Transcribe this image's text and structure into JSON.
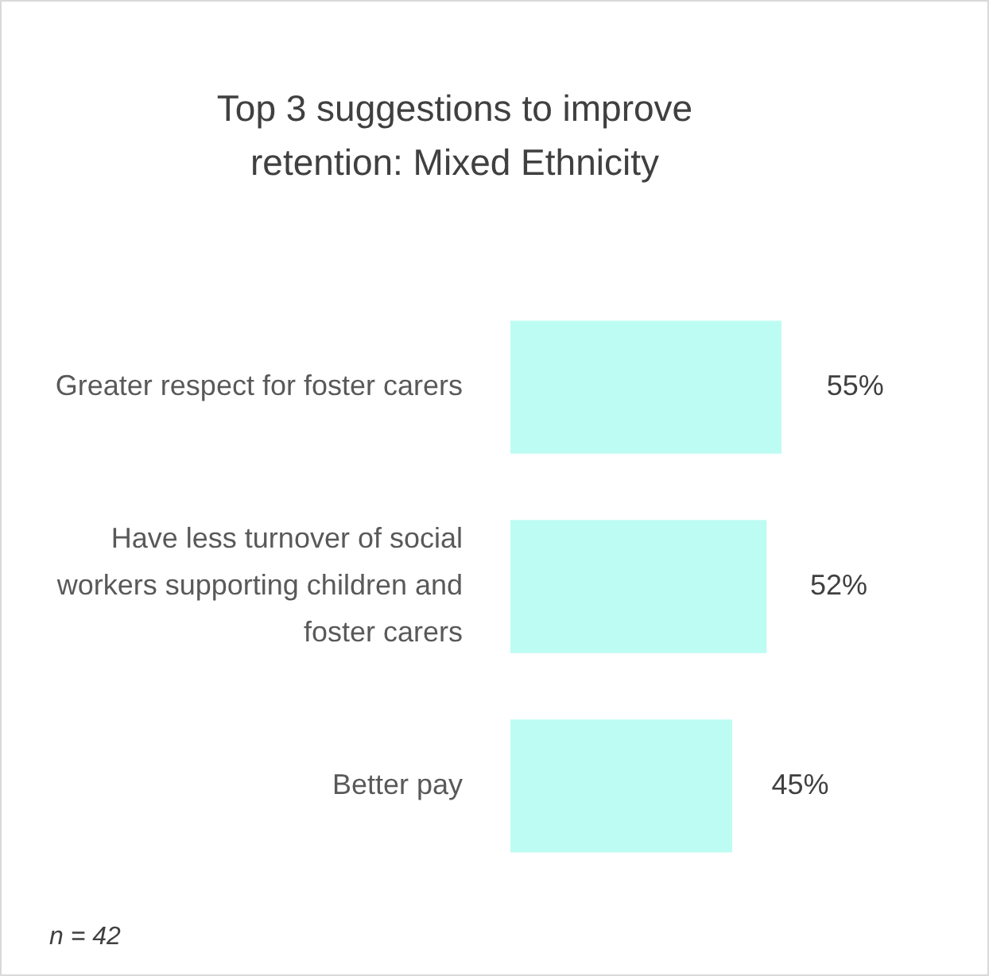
{
  "chart_data": {
    "type": "bar",
    "orientation": "horizontal",
    "title": "Top 3 suggestions to improve retention: Mixed Ethnicity",
    "categories": [
      "Greater respect for foster carers",
      "Have less turnover of social workers supporting children and foster carers",
      "Better pay"
    ],
    "values": [
      55,
      52,
      45
    ],
    "value_labels": [
      "55%",
      "52%",
      "45%"
    ],
    "color": "#bdfcf3",
    "annotations": [
      "n = 42"
    ]
  }
}
